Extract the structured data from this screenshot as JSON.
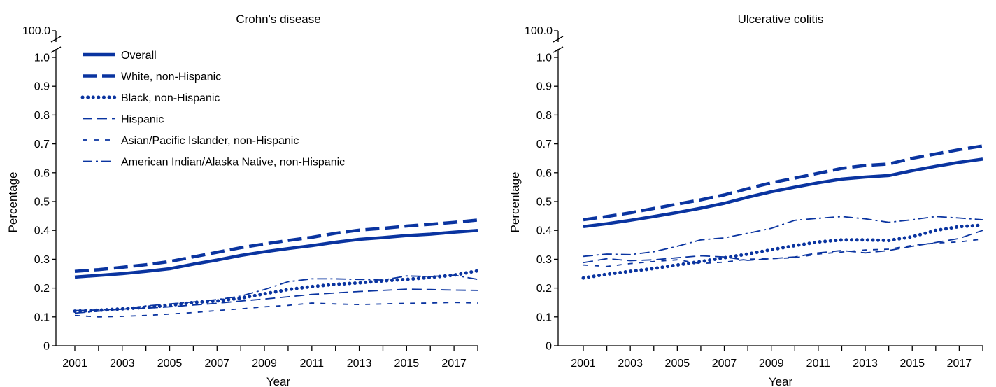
{
  "chart_data": [
    {
      "type": "line",
      "title": "Crohn's disease",
      "xlabel": "Year",
      "ylabel": "Percentage",
      "ylim": [
        0,
        1.0
      ],
      "axis_break": {
        "top_label": "100.0"
      },
      "yticks": [
        "0",
        "0.1",
        "0.2",
        "0.3",
        "0.4",
        "0.5",
        "0.6",
        "0.7",
        "0.8",
        "0.9",
        "1.0"
      ],
      "xticks": [
        "2001",
        "2003",
        "2005",
        "2007",
        "2009",
        "2011",
        "2013",
        "2015",
        "2017"
      ],
      "x": [
        2001,
        2002,
        2003,
        2004,
        2005,
        2006,
        2007,
        2008,
        2009,
        2010,
        2011,
        2012,
        2013,
        2014,
        2015,
        2016,
        2017,
        2018
      ],
      "legend_position": "top-left",
      "series": [
        {
          "name": "Overall",
          "style": "solid",
          "values": [
            0.238,
            0.244,
            0.25,
            0.258,
            0.267,
            0.283,
            0.297,
            0.313,
            0.326,
            0.337,
            0.347,
            0.359,
            0.369,
            0.375,
            0.382,
            0.387,
            0.394,
            0.4
          ]
        },
        {
          "name": "White, non-Hispanic",
          "style": "longdash",
          "values": [
            0.258,
            0.264,
            0.272,
            0.281,
            0.292,
            0.308,
            0.324,
            0.34,
            0.353,
            0.365,
            0.376,
            0.39,
            0.401,
            0.407,
            0.415,
            0.421,
            0.428,
            0.436
          ]
        },
        {
          "name": "Black, non-Hispanic",
          "style": "dotted",
          "values": [
            0.12,
            0.123,
            0.128,
            0.133,
            0.14,
            0.15,
            0.155,
            0.165,
            0.18,
            0.195,
            0.205,
            0.213,
            0.218,
            0.225,
            0.23,
            0.237,
            0.245,
            0.26
          ]
        },
        {
          "name": "Hispanic",
          "style": "dashdash",
          "values": [
            0.122,
            0.124,
            0.127,
            0.13,
            0.135,
            0.141,
            0.147,
            0.155,
            0.162,
            0.17,
            0.178,
            0.183,
            0.188,
            0.192,
            0.196,
            0.195,
            0.193,
            0.192
          ]
        },
        {
          "name": "Asian/Pacific Islander, non-Hispanic",
          "style": "shortdash",
          "values": [
            0.105,
            0.1,
            0.102,
            0.105,
            0.11,
            0.115,
            0.122,
            0.128,
            0.135,
            0.14,
            0.148,
            0.145,
            0.143,
            0.145,
            0.147,
            0.148,
            0.15,
            0.148
          ]
        },
        {
          "name": "American Indian/Alaska Native, non-Hispanic",
          "style": "dashdot",
          "values": [
            0.113,
            0.12,
            0.127,
            0.138,
            0.145,
            0.152,
            0.16,
            0.172,
            0.195,
            0.222,
            0.232,
            0.232,
            0.23,
            0.228,
            0.242,
            0.24,
            0.245,
            0.23
          ]
        }
      ]
    },
    {
      "type": "line",
      "title": "Ulcerative colitis",
      "xlabel": "Year",
      "ylabel": "Percentage",
      "ylim": [
        0,
        1.0
      ],
      "axis_break": {
        "top_label": "100.0"
      },
      "yticks": [
        "0",
        "0.1",
        "0.2",
        "0.3",
        "0.4",
        "0.5",
        "0.6",
        "0.7",
        "0.8",
        "0.9",
        "1.0"
      ],
      "xticks": [
        "2001",
        "2003",
        "2005",
        "2007",
        "2009",
        "2011",
        "2013",
        "2015",
        "2017"
      ],
      "x": [
        2001,
        2002,
        2003,
        2004,
        2005,
        2006,
        2007,
        2008,
        2009,
        2010,
        2011,
        2012,
        2013,
        2014,
        2015,
        2016,
        2017,
        2018
      ],
      "series": [
        {
          "name": "Overall",
          "style": "solid",
          "values": [
            0.413,
            0.423,
            0.435,
            0.448,
            0.462,
            0.477,
            0.494,
            0.515,
            0.534,
            0.55,
            0.565,
            0.578,
            0.585,
            0.59,
            0.607,
            0.622,
            0.636,
            0.647
          ]
        },
        {
          "name": "White, non-Hispanic",
          "style": "longdash",
          "values": [
            0.437,
            0.448,
            0.461,
            0.476,
            0.491,
            0.506,
            0.523,
            0.545,
            0.565,
            0.581,
            0.598,
            0.615,
            0.625,
            0.63,
            0.65,
            0.665,
            0.68,
            0.693
          ]
        },
        {
          "name": "Black, non-Hispanic",
          "style": "dotted",
          "values": [
            0.235,
            0.248,
            0.258,
            0.268,
            0.28,
            0.292,
            0.305,
            0.318,
            0.333,
            0.347,
            0.36,
            0.367,
            0.367,
            0.365,
            0.378,
            0.4,
            0.413,
            0.418
          ]
        },
        {
          "name": "Hispanic",
          "style": "dashdash",
          "values": [
            0.288,
            0.302,
            0.295,
            0.298,
            0.305,
            0.312,
            0.308,
            0.296,
            0.302,
            0.308,
            0.322,
            0.33,
            0.322,
            0.33,
            0.345,
            0.358,
            0.372,
            0.4
          ]
        },
        {
          "name": "Asian/Pacific Islander, non-Hispanic",
          "style": "shortdash",
          "values": [
            0.28,
            0.275,
            0.285,
            0.292,
            0.298,
            0.285,
            0.29,
            0.3,
            0.302,
            0.305,
            0.318,
            0.325,
            0.332,
            0.335,
            0.348,
            0.356,
            0.36,
            0.37
          ]
        },
        {
          "name": "American Indian/Alaska Native, non-Hispanic",
          "style": "dashdot",
          "values": [
            0.31,
            0.318,
            0.316,
            0.326,
            0.345,
            0.367,
            0.374,
            0.39,
            0.407,
            0.435,
            0.442,
            0.448,
            0.44,
            0.428,
            0.437,
            0.448,
            0.443,
            0.437
          ]
        }
      ]
    }
  ]
}
